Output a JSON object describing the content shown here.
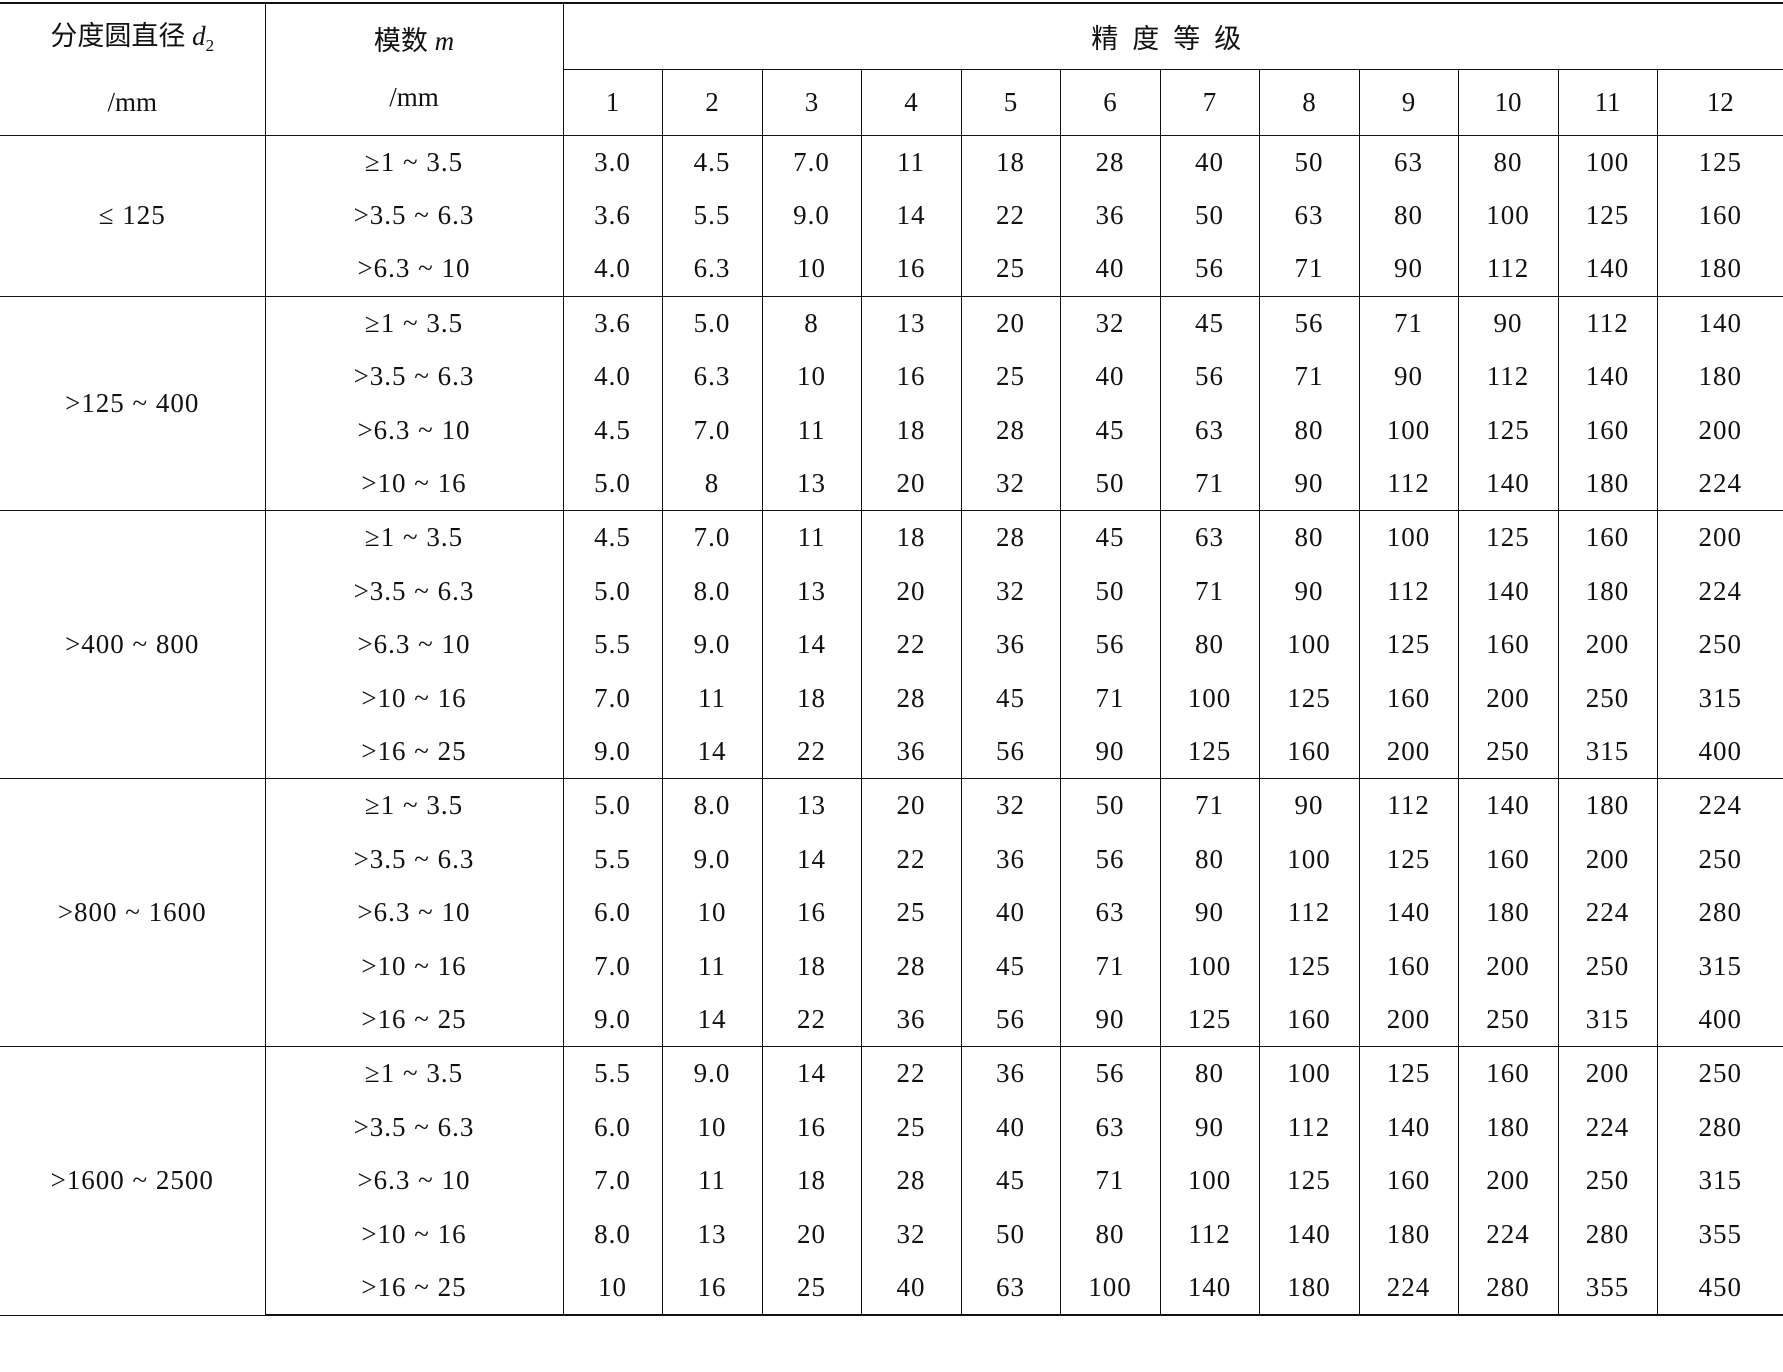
{
  "header": {
    "d2_label": "分度圆直径",
    "d2_symbol": "d",
    "d2_subscript": "2",
    "d2_unit": "/mm",
    "module_label": "模数",
    "module_symbol": "m",
    "module_unit": "/mm",
    "grades_title": "精度等级",
    "grades": [
      "1",
      "2",
      "3",
      "4",
      "5",
      "6",
      "7",
      "8",
      "9",
      "10",
      "11",
      "12"
    ]
  },
  "groups": [
    {
      "d2": "≤ 125",
      "rows": [
        {
          "m": "≥1 ~ 3.5",
          "v": [
            "3.0",
            "4.5",
            "7.0",
            "11",
            "18",
            "28",
            "40",
            "50",
            "63",
            "80",
            "100",
            "125"
          ]
        },
        {
          "m": ">3.5 ~ 6.3",
          "v": [
            "3.6",
            "5.5",
            "9.0",
            "14",
            "22",
            "36",
            "50",
            "63",
            "80",
            "100",
            "125",
            "160"
          ]
        },
        {
          "m": ">6.3 ~ 10",
          "v": [
            "4.0",
            "6.3",
            "10",
            "16",
            "25",
            "40",
            "56",
            "71",
            "90",
            "112",
            "140",
            "180"
          ]
        }
      ]
    },
    {
      "d2": ">125 ~ 400",
      "rows": [
        {
          "m": "≥1 ~ 3.5",
          "v": [
            "3.6",
            "5.0",
            "8",
            "13",
            "20",
            "32",
            "45",
            "56",
            "71",
            "90",
            "112",
            "140"
          ]
        },
        {
          "m": ">3.5 ~ 6.3",
          "v": [
            "4.0",
            "6.3",
            "10",
            "16",
            "25",
            "40",
            "56",
            "71",
            "90",
            "112",
            "140",
            "180"
          ]
        },
        {
          "m": ">6.3 ~ 10",
          "v": [
            "4.5",
            "7.0",
            "11",
            "18",
            "28",
            "45",
            "63",
            "80",
            "100",
            "125",
            "160",
            "200"
          ]
        },
        {
          "m": ">10 ~ 16",
          "v": [
            "5.0",
            "8",
            "13",
            "20",
            "32",
            "50",
            "71",
            "90",
            "112",
            "140",
            "180",
            "224"
          ]
        }
      ]
    },
    {
      "d2": ">400 ~ 800",
      "rows": [
        {
          "m": "≥1 ~ 3.5",
          "v": [
            "4.5",
            "7.0",
            "11",
            "18",
            "28",
            "45",
            "63",
            "80",
            "100",
            "125",
            "160",
            "200"
          ]
        },
        {
          "m": ">3.5 ~ 6.3",
          "v": [
            "5.0",
            "8.0",
            "13",
            "20",
            "32",
            "50",
            "71",
            "90",
            "112",
            "140",
            "180",
            "224"
          ]
        },
        {
          "m": ">6.3 ~ 10",
          "v": [
            "5.5",
            "9.0",
            "14",
            "22",
            "36",
            "56",
            "80",
            "100",
            "125",
            "160",
            "200",
            "250"
          ]
        },
        {
          "m": ">10 ~ 16",
          "v": [
            "7.0",
            "11",
            "18",
            "28",
            "45",
            "71",
            "100",
            "125",
            "160",
            "200",
            "250",
            "315"
          ]
        },
        {
          "m": ">16 ~ 25",
          "v": [
            "9.0",
            "14",
            "22",
            "36",
            "56",
            "90",
            "125",
            "160",
            "200",
            "250",
            "315",
            "400"
          ]
        }
      ]
    },
    {
      "d2": ">800 ~ 1600",
      "rows": [
        {
          "m": "≥1 ~ 3.5",
          "v": [
            "5.0",
            "8.0",
            "13",
            "20",
            "32",
            "50",
            "71",
            "90",
            "112",
            "140",
            "180",
            "224"
          ]
        },
        {
          "m": ">3.5 ~ 6.3",
          "v": [
            "5.5",
            "9.0",
            "14",
            "22",
            "36",
            "56",
            "80",
            "100",
            "125",
            "160",
            "200",
            "250"
          ]
        },
        {
          "m": ">6.3 ~ 10",
          "v": [
            "6.0",
            "10",
            "16",
            "25",
            "40",
            "63",
            "90",
            "112",
            "140",
            "180",
            "224",
            "280"
          ]
        },
        {
          "m": ">10 ~ 16",
          "v": [
            "7.0",
            "11",
            "18",
            "28",
            "45",
            "71",
            "100",
            "125",
            "160",
            "200",
            "250",
            "315"
          ]
        },
        {
          "m": ">16 ~ 25",
          "v": [
            "9.0",
            "14",
            "22",
            "36",
            "56",
            "90",
            "125",
            "160",
            "200",
            "250",
            "315",
            "400"
          ]
        }
      ]
    },
    {
      "d2": ">1600 ~ 2500",
      "rows": [
        {
          "m": "≥1 ~ 3.5",
          "v": [
            "5.5",
            "9.0",
            "14",
            "22",
            "36",
            "56",
            "80",
            "100",
            "125",
            "160",
            "200",
            "250"
          ]
        },
        {
          "m": ">3.5 ~ 6.3",
          "v": [
            "6.0",
            "10",
            "16",
            "25",
            "40",
            "63",
            "90",
            "112",
            "140",
            "180",
            "224",
            "280"
          ]
        },
        {
          "m": ">6.3 ~ 10",
          "v": [
            "7.0",
            "11",
            "18",
            "28",
            "45",
            "71",
            "100",
            "125",
            "160",
            "200",
            "250",
            "315"
          ]
        },
        {
          "m": ">10 ~ 16",
          "v": [
            "8.0",
            "13",
            "20",
            "32",
            "50",
            "80",
            "112",
            "140",
            "180",
            "224",
            "280",
            "355"
          ]
        },
        {
          "m": ">16 ~ 25",
          "v": [
            "10",
            "16",
            "25",
            "40",
            "63",
            "100",
            "140",
            "180",
            "224",
            "280",
            "355",
            "450"
          ]
        }
      ]
    }
  ]
}
